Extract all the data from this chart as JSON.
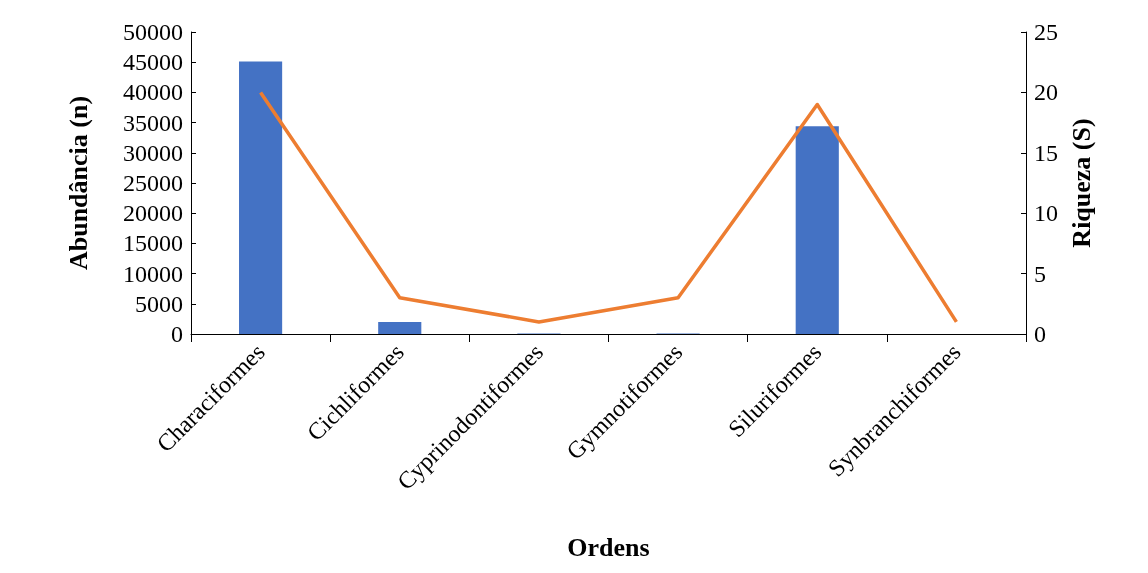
{
  "chart_data": {
    "type": "bar",
    "xlabel": "Ordens",
    "ylabel": "Abundância (n)",
    "y2label": "Riqueza (S)",
    "categories": [
      "Characiformes",
      "Cichliformes",
      "Cyprinodontiformes",
      "Gymnotiformes",
      "Siluriformes",
      "Synbranchiformes"
    ],
    "series": [
      {
        "color": "#4472c4",
        "values": [
          45100,
          2000,
          100,
          100,
          34400,
          0
        ]
      },
      {
        "type": "line",
        "axis": "y2",
        "color": "#ed7d31",
        "values": [
          20,
          3,
          1,
          3,
          19,
          1
        ]
      }
    ],
    "ylim": [
      0,
      50000
    ],
    "yticks": [
      0,
      5000,
      10000,
      15000,
      20000,
      25000,
      30000,
      35000,
      40000,
      45000,
      50000
    ],
    "y2lim": [
      0,
      25
    ],
    "y2ticks": [
      0,
      5,
      10,
      15,
      20,
      25
    ],
    "grid": false,
    "marker": "none"
  }
}
